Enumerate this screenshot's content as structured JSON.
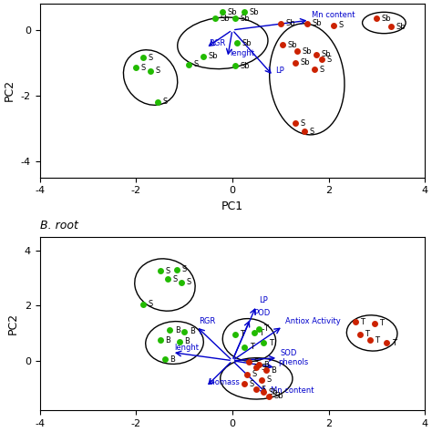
{
  "chart_data": [
    {
      "type": "scatter",
      "xlabel": "PC1",
      "ylabel": "PC2",
      "xlim": [
        -4,
        4
      ],
      "ylim": [
        -4.5,
        0.8
      ],
      "xticks": [
        -4,
        -2,
        0,
        2,
        4
      ],
      "yticks": [
        -4,
        -2,
        0
      ],
      "series": [
        {
          "name": "Sb",
          "color": "#22bb00",
          "x": [
            -0.2,
            0.25
          ],
          "y": [
            0.55,
            0.55
          ]
        },
        {
          "name": "Sb",
          "color": "#22bb00",
          "x": [
            -0.35,
            0.05,
            0.1,
            -0.6,
            0.05
          ],
          "y": [
            0.35,
            0.35,
            -0.4,
            -0.8,
            -1.1
          ]
        },
        {
          "name": "S",
          "color": "#22bb00",
          "x": [
            -1.85,
            -2.0,
            -1.7,
            -1.55,
            -0.9
          ],
          "y": [
            -0.85,
            -1.15,
            -1.25,
            -2.2,
            -1.05
          ]
        },
        {
          "name": "Sb",
          "color": "#cc2200",
          "x": [
            1.0,
            1.55,
            1.05,
            1.35,
            1.75,
            1.3
          ],
          "y": [
            0.2,
            0.2,
            -0.45,
            -0.65,
            -0.75,
            -1.0
          ]
        },
        {
          "name": "S",
          "color": "#cc2200",
          "x": [
            2.1,
            1.85,
            1.7,
            1.3,
            1.5
          ],
          "y": [
            0.15,
            -0.9,
            -1.2,
            -2.85,
            -3.1
          ]
        },
        {
          "name": "Sb",
          "color": "#cc2200",
          "x": [
            3.0,
            3.3
          ],
          "y": [
            0.35,
            0.1
          ]
        }
      ],
      "arrows": {
        "color": "#0000cc",
        "items": [
          {
            "label": "Mn content",
            "x": 1.6,
            "y": 0.3
          },
          {
            "label": "RGR",
            "x": -0.55,
            "y": -0.55
          },
          {
            "label": "lenght",
            "x": -0.1,
            "y": -0.85
          },
          {
            "label": "LP",
            "x": 0.85,
            "y": -1.4
          }
        ]
      },
      "ellipses": {
        "color": "black",
        "items": [
          {
            "cx": -0.2,
            "cy": -0.4,
            "width": 1.9,
            "height": 1.55,
            "angle": 15
          },
          {
            "cx": -1.7,
            "cy": -1.45,
            "width": 1.1,
            "height": 1.7,
            "angle": 10
          },
          {
            "cx": 1.55,
            "cy": -1.5,
            "width": 1.55,
            "height": 3.4,
            "angle": 3
          },
          {
            "cx": 3.15,
            "cy": 0.22,
            "width": 0.9,
            "height": 0.65,
            "angle": 0
          }
        ]
      }
    },
    {
      "type": "scatter",
      "title": "B. root",
      "ylabel": "PC2",
      "xlim": [
        -4,
        4
      ],
      "ylim": [
        -1.8,
        4.5
      ],
      "xticks": [
        -4,
        -2,
        0,
        2,
        4
      ],
      "yticks": [
        0,
        2,
        4
      ],
      "series": [
        {
          "name": "S",
          "color": "#22bb00",
          "x": [
            -1.5,
            -1.15,
            -1.35,
            -1.05,
            -1.85
          ],
          "y": [
            3.25,
            3.3,
            2.95,
            2.85,
            2.05
          ]
        },
        {
          "name": "B",
          "color": "#22bb00",
          "x": [
            -1.3,
            -1.0,
            -1.5,
            -1.1,
            -1.4
          ],
          "y": [
            1.1,
            1.05,
            0.75,
            0.7,
            0.05
          ]
        },
        {
          "name": "T",
          "color": "#22bb00",
          "x": [
            0.05,
            0.45,
            0.55,
            0.25,
            0.65
          ],
          "y": [
            0.95,
            1.0,
            1.15,
            0.5,
            0.65
          ]
        },
        {
          "name": "T",
          "color": "#cc2200",
          "x": [
            2.55,
            2.95,
            2.65,
            2.85,
            3.2
          ],
          "y": [
            1.4,
            1.35,
            0.95,
            0.75,
            0.65
          ]
        },
        {
          "name": "S",
          "color": "#cc2200",
          "x": [
            0.35,
            0.5,
            0.3,
            0.6,
            0.25,
            0.5
          ],
          "y": [
            -0.05,
            -0.25,
            -0.5,
            -0.7,
            -0.85,
            -1.05
          ]
        },
        {
          "name": "B",
          "color": "#cc2200",
          "x": [
            0.55,
            0.7
          ],
          "y": [
            -0.15,
            -0.35
          ]
        },
        {
          "name": "Sb",
          "color": "#cc2200",
          "x": [
            0.65,
            0.75
          ],
          "y": [
            -1.15,
            -1.3
          ]
        }
      ],
      "arrows": {
        "color": "#0000cc",
        "items": [
          {
            "label": "LP",
            "x": 0.5,
            "y": 2.0
          },
          {
            "label": "RGR",
            "x": -0.75,
            "y": 1.25
          },
          {
            "label": "lenght",
            "x": -1.25,
            "y": 0.3
          },
          {
            "label": "biomass",
            "x": -0.55,
            "y": -0.95
          },
          {
            "label": "POD",
            "x": 0.38,
            "y": 1.55
          },
          {
            "label": "Antiox Activity",
            "x": 1.05,
            "y": 1.25
          },
          {
            "label": "SOD",
            "x": 0.95,
            "y": 0.1
          },
          {
            "label": "phenols",
            "x": 0.9,
            "y": -0.25
          },
          {
            "label": "Mn content",
            "x": 0.75,
            "y": -1.25
          }
        ]
      },
      "ellipses": {
        "color": "black",
        "items": [
          {
            "cx": -1.4,
            "cy": 2.75,
            "width": 1.25,
            "height": 1.9,
            "angle": 5
          },
          {
            "cx": -1.2,
            "cy": 0.65,
            "width": 1.2,
            "height": 1.55,
            "angle": -5
          },
          {
            "cx": 0.35,
            "cy": 0.75,
            "width": 1.1,
            "height": 1.55,
            "angle": 5
          },
          {
            "cx": 2.9,
            "cy": 1.0,
            "width": 1.05,
            "height": 1.3,
            "angle": 5
          },
          {
            "cx": 0.5,
            "cy": -0.65,
            "width": 1.5,
            "height": 1.5,
            "angle": -5
          }
        ]
      }
    }
  ]
}
